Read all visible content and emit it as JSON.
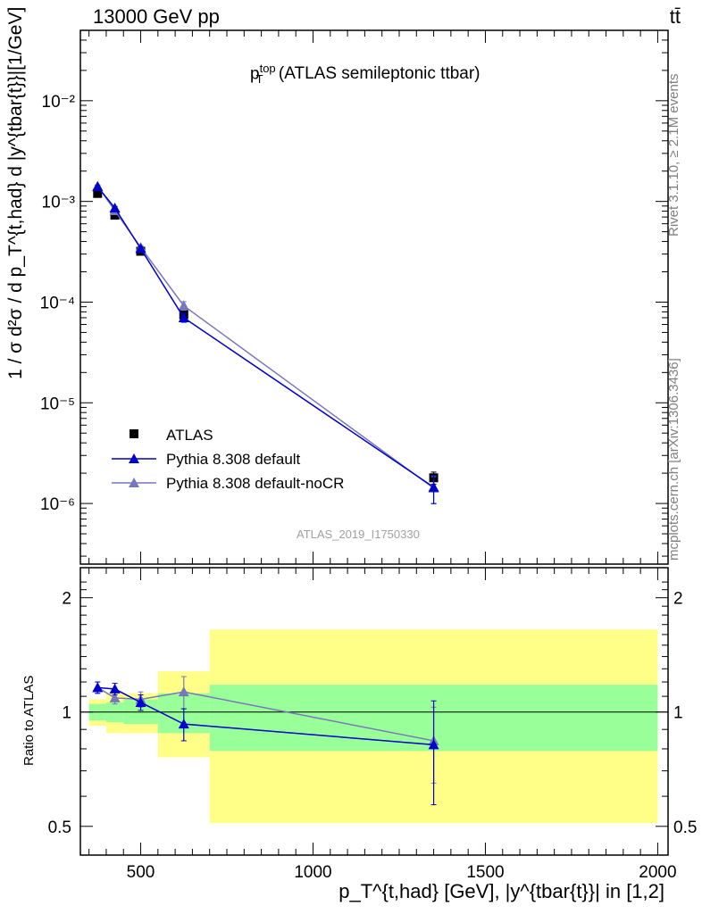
{
  "header": {
    "energy_label": "13000 GeV pp",
    "process_label": "tt̄"
  },
  "side_text": {
    "rivet": "Rivet 3.1.10, ≥ 2.1M events",
    "mcplots": "mcplots.cern.ch [arXiv:1306.3436]"
  },
  "colors": {
    "data": "#000000",
    "default": "#0000cc",
    "noCR": "#7777bb",
    "band_inner": "#99ff99",
    "band_outer": "#ffff88",
    "analysis_text": "#a0a0a0"
  },
  "chart_data": [
    {
      "type": "scatter",
      "title_main": "p",
      "title_sup": "top",
      "title_sub": "T",
      "title_suffix": "(ATLAS semileptonic ttbar)",
      "analysis_id": "ATLAS_2019_I1750330",
      "ylabel": "1 / σ d²σ / d p_T^{t,had} d |y^{tbar{t}}|[1/GeV]",
      "yscale": "log",
      "ylim": [
        2.5e-07,
        0.05
      ],
      "xlim": [
        325,
        2030
      ],
      "ytick_labels": [
        "10⁻⁶",
        "10⁻⁵",
        "10⁻⁴",
        "10⁻³",
        "10⁻²"
      ],
      "legend_position": "lower-left",
      "series": [
        {
          "name": "ATLAS",
          "marker": "square",
          "x": [
            375,
            425,
            500,
            625,
            1350
          ],
          "y": [
            0.0012,
            0.00073,
            0.00032,
            7.5e-05,
            1.8e-06
          ],
          "yerr": [
            5e-05,
            3e-05,
            1.5e-05,
            6e-06,
            2.5e-07
          ]
        },
        {
          "name": "Pythia 8.308 default",
          "marker": "triangle",
          "x": [
            375,
            425,
            500,
            625,
            1350
          ],
          "y": [
            0.0014,
            0.00086,
            0.00034,
            7e-05,
            1.45e-06
          ],
          "yerr": [
            4e-05,
            3e-05,
            1.5e-05,
            7e-06,
            4.5e-07
          ]
        },
        {
          "name": "Pythia 8.308 default-noCR",
          "marker": "triangle",
          "x": [
            375,
            425,
            500,
            625,
            1350
          ],
          "y": [
            0.00142,
            0.00081,
            0.00035,
            9.2e-05,
            1.42e-06
          ],
          "yerr": [
            4e-05,
            3e-05,
            1.5e-05,
            9e-06,
            4.3e-07
          ]
        }
      ]
    },
    {
      "type": "scatter",
      "ylabel": "Ratio to ATLAS",
      "yscale": "log",
      "ylim": [
        0.42,
        2.4
      ],
      "xlim": [
        325,
        2030
      ],
      "xlabel": "p_T^{t,had} [GeV], |y^{tbar{t}}| in [1,2]",
      "ytick_labels": [
        "0.5",
        "1",
        "2"
      ],
      "xtick_labels": [
        "500",
        "1000",
        "1500",
        "2000"
      ],
      "bands": [
        {
          "xlo": 350,
          "xhi": 400,
          "inner": [
            0.95,
            1.05
          ],
          "outer": [
            0.92,
            1.08
          ]
        },
        {
          "xlo": 400,
          "xhi": 450,
          "inner": [
            0.94,
            1.06
          ],
          "outer": [
            0.88,
            1.12
          ]
        },
        {
          "xlo": 450,
          "xhi": 550,
          "inner": [
            0.93,
            1.08
          ],
          "outer": [
            0.88,
            1.12
          ]
        },
        {
          "xlo": 550,
          "xhi": 700,
          "inner": [
            0.88,
            1.12
          ],
          "outer": [
            0.76,
            1.28
          ]
        },
        {
          "xlo": 700,
          "xhi": 2000,
          "inner": [
            0.79,
            1.18
          ],
          "outer": [
            0.51,
            1.65
          ]
        }
      ],
      "series": [
        {
          "name": "Pythia 8.308 default",
          "x": [
            375,
            425,
            500,
            625,
            1350
          ],
          "y": [
            1.16,
            1.15,
            1.06,
            0.93,
            0.82
          ],
          "yerr": [
            0.04,
            0.04,
            0.05,
            0.09,
            0.25
          ]
        },
        {
          "name": "Pythia 8.308 default-noCR",
          "x": [
            375,
            425,
            500,
            625,
            1350
          ],
          "y": [
            1.16,
            1.09,
            1.08,
            1.13,
            0.84
          ],
          "yerr": [
            0.04,
            0.04,
            0.05,
            0.11,
            0.19
          ]
        }
      ]
    }
  ]
}
